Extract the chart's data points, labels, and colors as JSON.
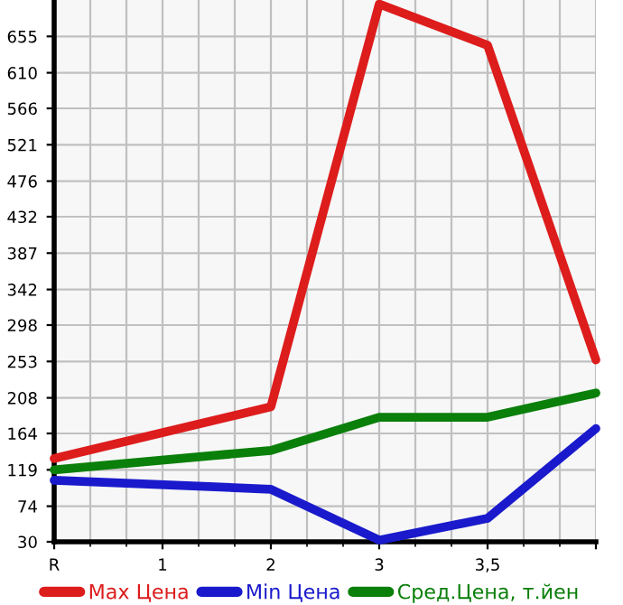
{
  "chart_data": {
    "type": "line",
    "categories": [
      "R",
      "1",
      "2",
      "3",
      "3,5",
      null
    ],
    "series": [
      {
        "name": "Max Цена",
        "color": "#dd1c1c",
        "values": [
          133,
          null,
          197,
          695,
          644,
          255
        ]
      },
      {
        "name": "Min Цена",
        "color": "#1a1acc",
        "values": [
          106,
          null,
          95,
          32,
          59,
          170
        ]
      },
      {
        "name": "Сред.Цена, т.йен",
        "color": "#0a7f0a",
        "values": [
          119,
          null,
          143,
          184,
          184,
          214
        ]
      }
    ],
    "ylim": [
      30,
      700
    ],
    "yticks": [
      30,
      74,
      119,
      164,
      208,
      253,
      298,
      342,
      387,
      432,
      476,
      521,
      566,
      610,
      655
    ],
    "grid": true,
    "legend": "bottom",
    "marker": "none",
    "line_style": "solid"
  }
}
